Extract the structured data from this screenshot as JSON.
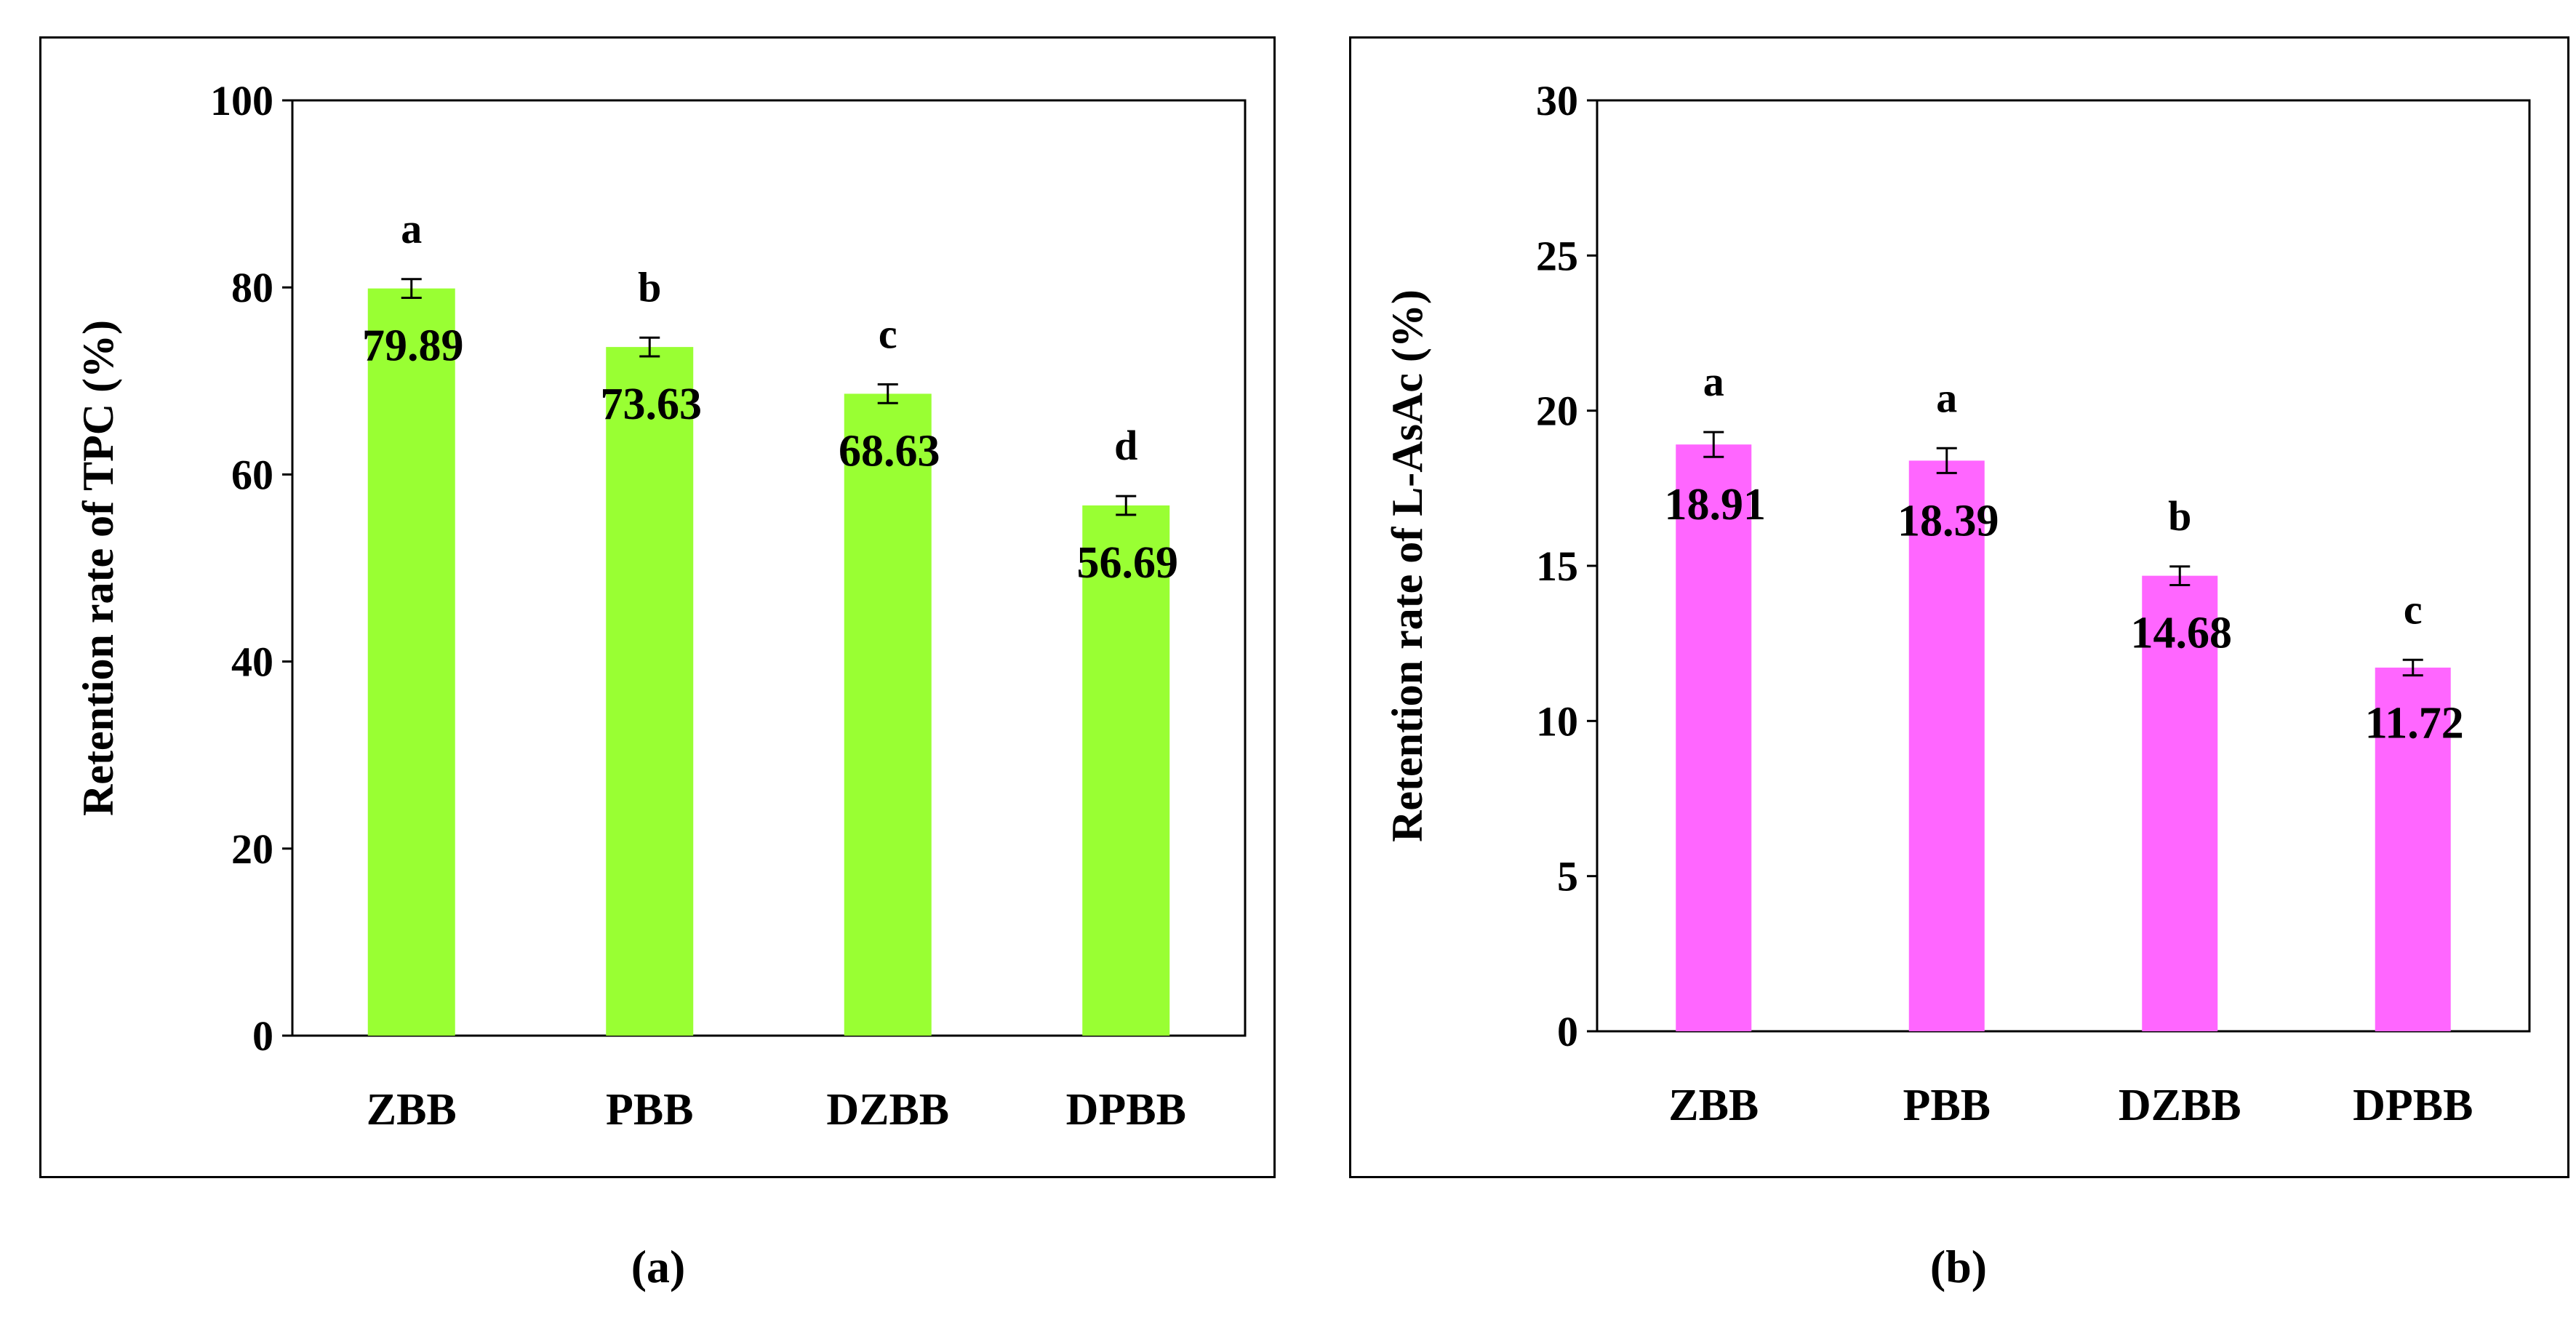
{
  "chart_data": [
    {
      "type": "bar",
      "panel_label": "(a)",
      "title": "",
      "xlabel": "",
      "ylabel": "Retention rate of TPC (%)",
      "ylim": [
        0,
        100
      ],
      "yticks": [
        "0",
        "20",
        "40",
        "60",
        "80",
        "100"
      ],
      "categories": [
        "ZBB",
        "PBB",
        "DZBB",
        "DPBB"
      ],
      "values": [
        79.89,
        73.63,
        68.63,
        56.69
      ],
      "value_labels": [
        "79.89",
        "73.63",
        "68.63",
        "56.69"
      ],
      "errors": [
        1.0,
        1.0,
        1.0,
        1.0
      ],
      "significance_letters": [
        "a",
        "b",
        "c",
        "d"
      ],
      "bar_color": "#99ff33",
      "grid": false
    },
    {
      "type": "bar",
      "panel_label": "(b)",
      "title": "",
      "xlabel": "",
      "ylabel": "Retention rate of L-AsAc (%)",
      "ylim": [
        0,
        30
      ],
      "yticks": [
        "0",
        "5",
        "10",
        "15",
        "20",
        "25",
        "30"
      ],
      "categories": [
        "ZBB",
        "PBB",
        "DZBB",
        "DPBB"
      ],
      "values": [
        18.91,
        18.39,
        14.68,
        11.72
      ],
      "value_labels": [
        "18.91",
        "18.39",
        "14.68",
        "11.72"
      ],
      "errors": [
        0.4,
        0.4,
        0.3,
        0.25
      ],
      "significance_letters": [
        "a",
        "a",
        "b",
        "c"
      ],
      "bar_color": "#ff66ff",
      "grid": false
    }
  ]
}
